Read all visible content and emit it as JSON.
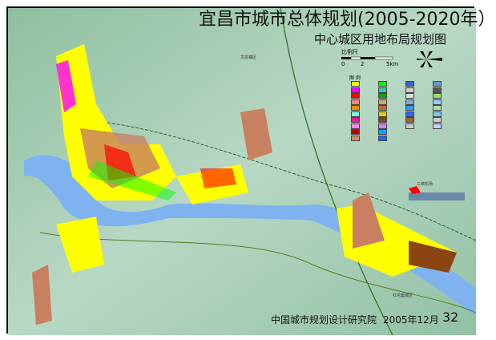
{
  "title": "宜昌市城市总体规划(2005-2020年）",
  "subtitle": "中心城区用地布局规划图",
  "footer": {
    "institute": "中国城市规划设计研究院",
    "date": "2005年12月",
    "page_number": "32"
  },
  "scale_bar": {
    "label": "比例尺",
    "ticks": [
      "0",
      "2",
      "5km"
    ]
  },
  "legend": {
    "title": "图 例",
    "swatch_colors": [
      "#ffff00",
      "#ff00ff",
      "#ff0000",
      "#ff7f7f",
      "#ff8c00",
      "#7fffd4",
      "#ff1493",
      "#ff88ee",
      "#b00000",
      "#d98c6a",
      "#00ff00",
      "#33cc99",
      "#00aa00",
      "#dda070",
      "#c06a2a",
      "#e0d000",
      "#8b4513",
      "#cc88ff",
      "#00aaff",
      "#1a66ff",
      "#3366cc",
      "#cccccc",
      "#dddddd",
      "#88aacc",
      "#3399ff",
      "#3366ff",
      "#996633",
      "#cccccc",
      "#6699cc",
      "#555555",
      "#99dd66",
      "#99ccff",
      "#aaddaa",
      "#77ccee",
      "#cccccc",
      "#ccccff"
    ]
  },
  "places": {
    "airport": "三峡机场",
    "honghuatao": "红花套城区",
    "longquan": "龙泉镇区"
  },
  "colors": {
    "river": "#7fb3f0",
    "terrain": "#9fc9ad",
    "residential": "#ffff00",
    "industrial": "#c88060",
    "green": "#00ff00"
  }
}
